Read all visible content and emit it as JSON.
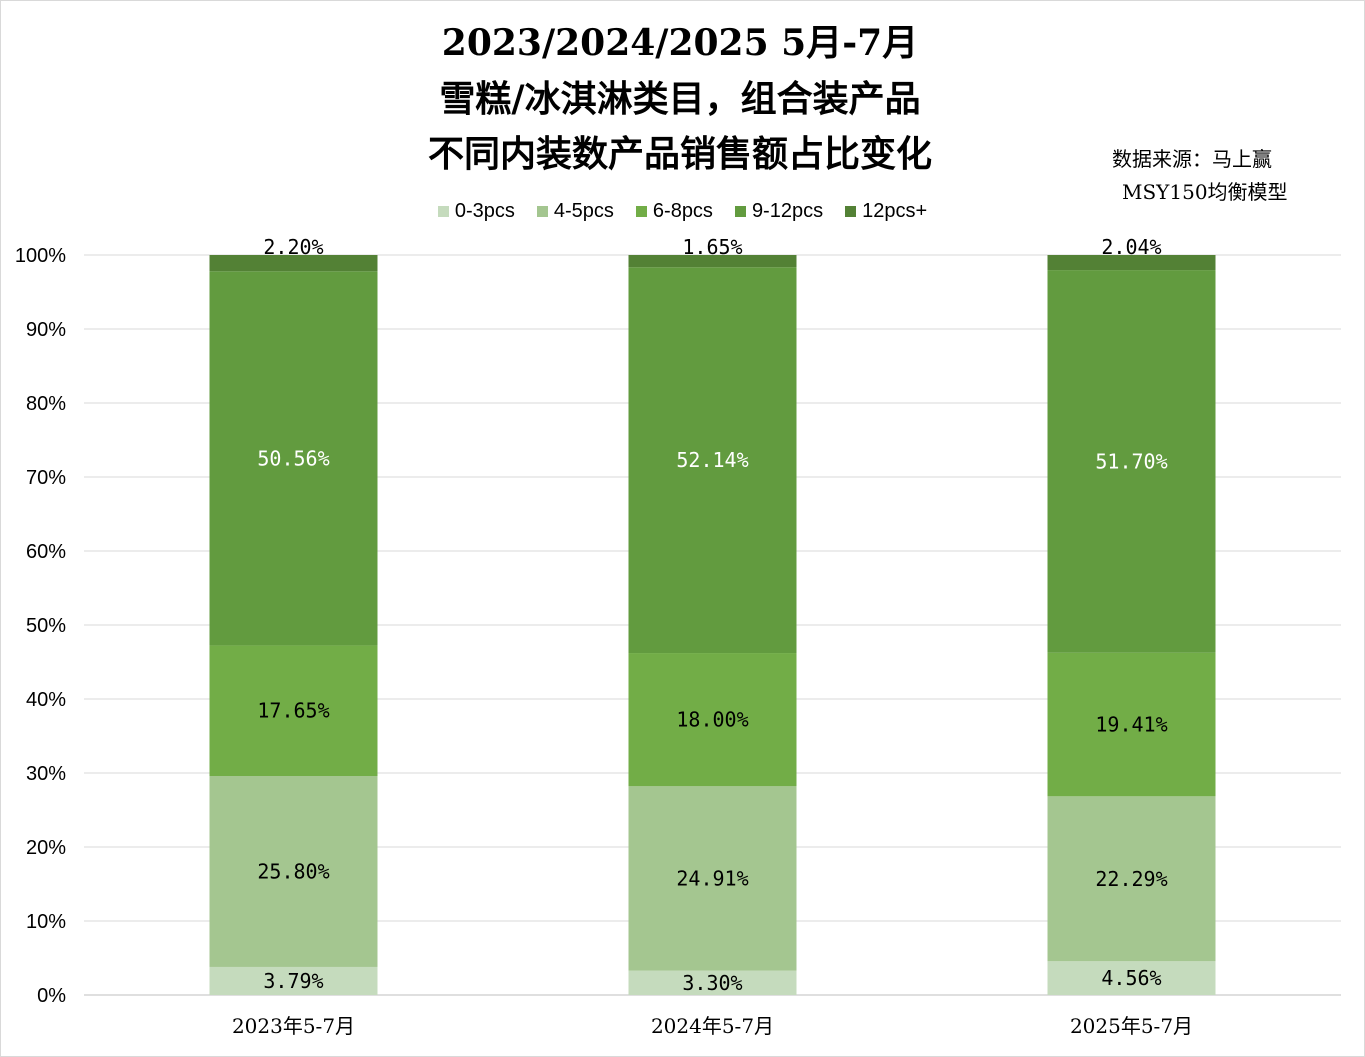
{
  "chart_title": {
    "line1": "2023/2024/2025 5月-7月",
    "line2": "雪糕/冰淇淋类目，组合装产品",
    "line3": "不同内装数产品销售额占比变化"
  },
  "source": {
    "line1": "数据来源：马上赢",
    "line2": "MSY150均衡模型"
  },
  "chart_data": {
    "type": "bar",
    "stacked": true,
    "percent": true,
    "categories": [
      "2023年5-7月",
      "2024年5-7月",
      "2025年5-7月"
    ],
    "series": [
      {
        "name": "0-3pcs",
        "values": [
          3.79,
          3.3,
          4.56
        ],
        "labels": [
          "3.79%",
          "3.30%",
          "4.56%"
        ],
        "color": "#c5dbbd",
        "label_color": "#000000"
      },
      {
        "name": "4-5pcs",
        "values": [
          25.8,
          24.91,
          22.29
        ],
        "labels": [
          "25.80%",
          "24.91%",
          "22.29%"
        ],
        "color": "#a4c690",
        "label_color": "#000000"
      },
      {
        "name": "6-8pcs",
        "values": [
          17.65,
          18.0,
          19.41
        ],
        "labels": [
          "17.65%",
          "18.00%",
          "19.41%"
        ],
        "color": "#72ad47",
        "label_color": "#000000"
      },
      {
        "name": "9-12pcs",
        "values": [
          50.56,
          52.14,
          51.7
        ],
        "labels": [
          "50.56%",
          "52.14%",
          "51.70%"
        ],
        "color": "#629b3f",
        "label_color": "#ffffff"
      },
      {
        "name": "12pcs+",
        "values": [
          2.2,
          1.65,
          2.04
        ],
        "labels": [
          "2.20%",
          "1.65%",
          "2.04%"
        ],
        "color": "#538135",
        "label_color": "#000000"
      }
    ],
    "ylim": [
      0,
      100
    ],
    "yticks": [
      "0%",
      "10%",
      "20%",
      "30%",
      "40%",
      "50%",
      "60%",
      "70%",
      "80%",
      "90%",
      "100%"
    ],
    "grid": true,
    "legend_position": "top"
  }
}
